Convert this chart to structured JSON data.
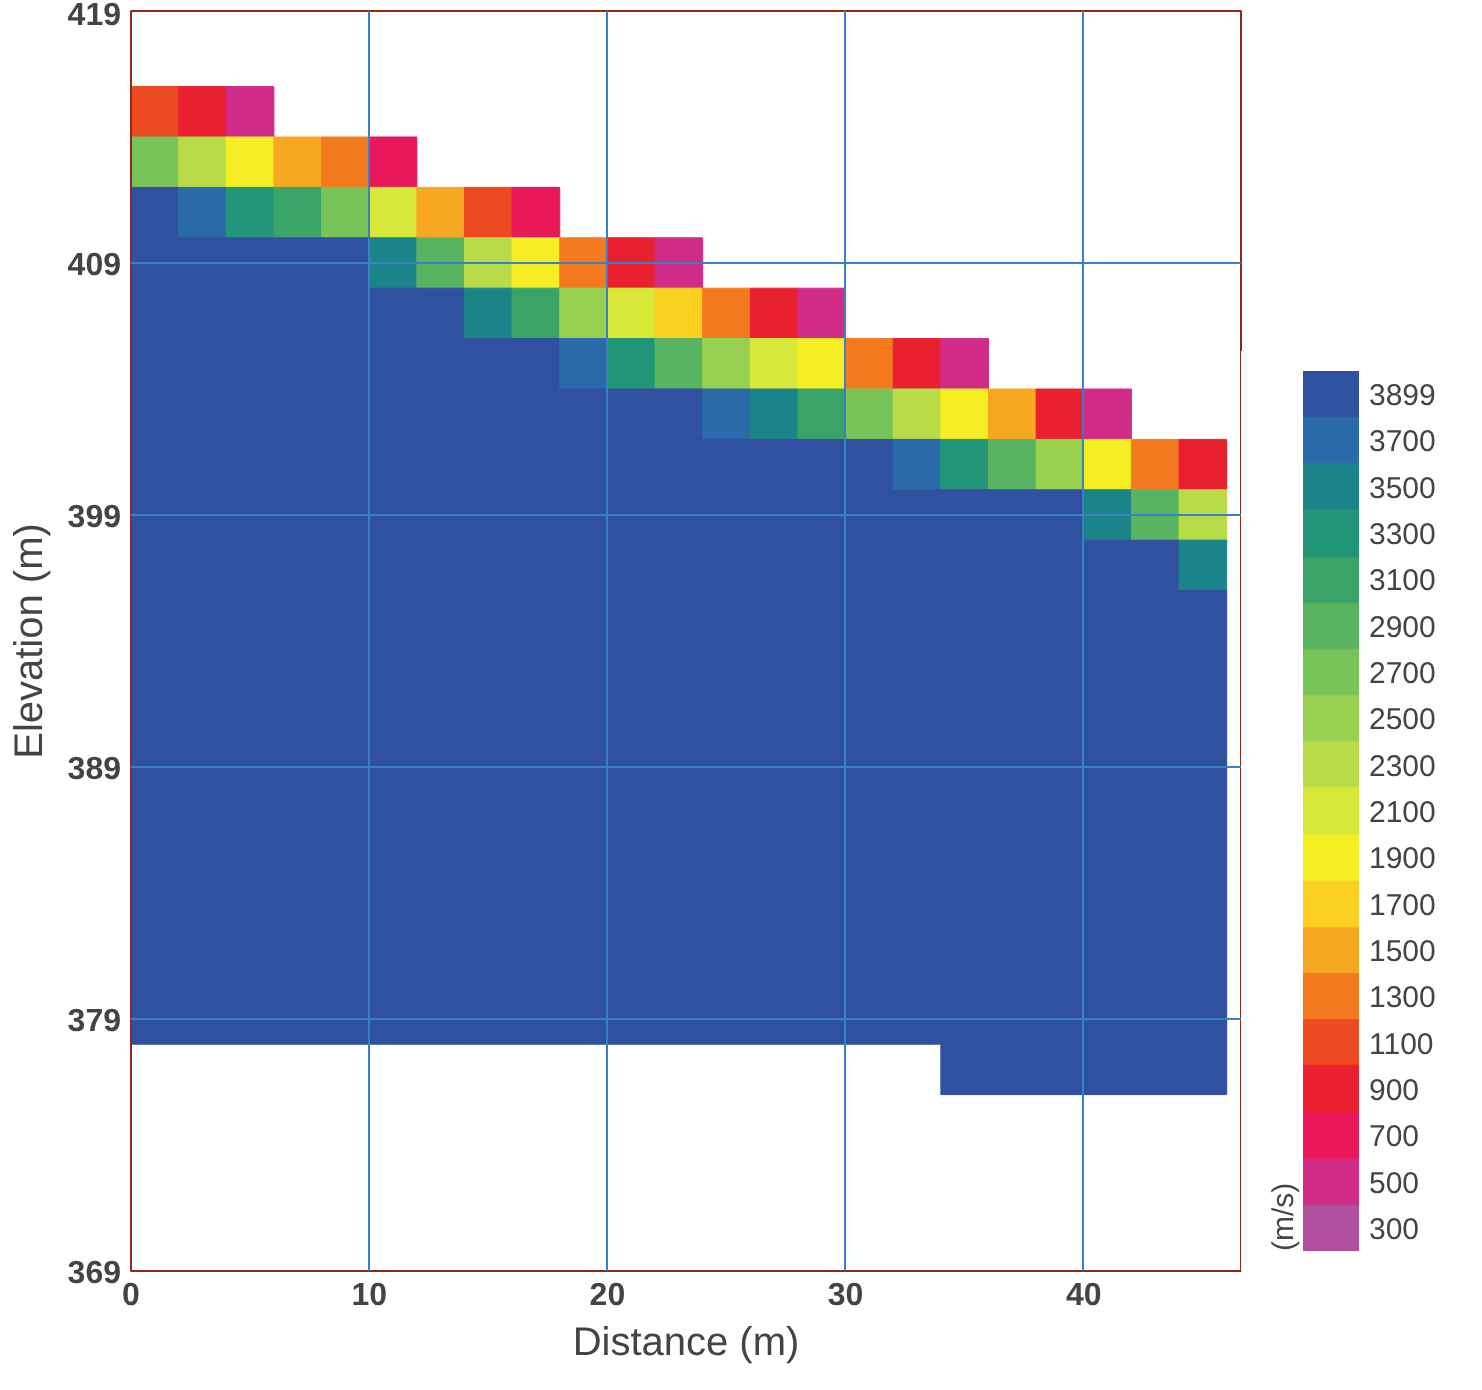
{
  "chart_data": {
    "type": "heatmap",
    "xlabel": "Distance (m)",
    "ylabel": "Elevation (m)",
    "clabel": "(m/s)",
    "x": [
      1,
      3,
      5,
      7,
      9,
      11,
      13,
      15,
      17,
      19,
      21,
      23,
      25,
      27,
      29,
      31,
      33,
      35,
      37,
      39,
      41,
      43,
      45
    ],
    "y": [
      415,
      413,
      411,
      409,
      407,
      405,
      403,
      401,
      399,
      397,
      395,
      393,
      391,
      389,
      387,
      385,
      383,
      381,
      379,
      377
    ],
    "cells": [
      [
        1100,
        900,
        500,
        null,
        null,
        null,
        null,
        null,
        null,
        null,
        null,
        null,
        null,
        null,
        null,
        null,
        null,
        null,
        null,
        null,
        null,
        null,
        null
      ],
      [
        2700,
        2300,
        1900,
        1500,
        1300,
        700,
        null,
        null,
        null,
        null,
        null,
        null,
        null,
        null,
        null,
        null,
        null,
        null,
        null,
        null,
        null,
        null,
        null
      ],
      [
        3899,
        3700,
        3300,
        3100,
        2700,
        2100,
        1500,
        1100,
        700,
        null,
        null,
        null,
        null,
        null,
        null,
        null,
        null,
        null,
        null,
        null,
        null,
        null,
        null
      ],
      [
        3899,
        3899,
        3899,
        3899,
        3899,
        3500,
        2900,
        2300,
        1900,
        1300,
        900,
        500,
        null,
        null,
        null,
        null,
        null,
        null,
        null,
        null,
        null,
        null,
        null
      ],
      [
        3899,
        3899,
        3899,
        3899,
        3899,
        3899,
        3899,
        3500,
        3100,
        2500,
        2100,
        1700,
        1300,
        900,
        500,
        null,
        null,
        null,
        null,
        null,
        null,
        null,
        null
      ],
      [
        3899,
        3899,
        3899,
        3899,
        3899,
        3899,
        3899,
        3899,
        3899,
        3700,
        3300,
        2900,
        2500,
        2100,
        1900,
        1300,
        900,
        500,
        null,
        null,
        null,
        null,
        null
      ],
      [
        3899,
        3899,
        3899,
        3899,
        3899,
        3899,
        3899,
        3899,
        3899,
        3899,
        3899,
        3899,
        3700,
        3500,
        3100,
        2700,
        2300,
        1900,
        1500,
        900,
        500,
        null,
        null
      ],
      [
        3899,
        3899,
        3899,
        3899,
        3899,
        3899,
        3899,
        3899,
        3899,
        3899,
        3899,
        3899,
        3899,
        3899,
        3899,
        3899,
        3700,
        3300,
        2900,
        2500,
        1900,
        1300,
        900
      ],
      [
        3899,
        3899,
        3899,
        3899,
        3899,
        3899,
        3899,
        3899,
        3899,
        3899,
        3899,
        3899,
        3899,
        3899,
        3899,
        3899,
        3899,
        3899,
        3899,
        3899,
        3500,
        2900,
        2300
      ],
      [
        3899,
        3899,
        3899,
        3899,
        3899,
        3899,
        3899,
        3899,
        3899,
        3899,
        3899,
        3899,
        3899,
        3899,
        3899,
        3899,
        3899,
        3899,
        3899,
        3899,
        3899,
        3899,
        3500
      ],
      [
        3899,
        3899,
        3899,
        3899,
        3899,
        3899,
        3899,
        3899,
        3899,
        3899,
        3899,
        3899,
        3899,
        3899,
        3899,
        3899,
        3899,
        3899,
        3899,
        3899,
        3899,
        3899,
        3899
      ],
      [
        3899,
        3899,
        3899,
        3899,
        3899,
        3899,
        3899,
        3899,
        3899,
        3899,
        3899,
        3899,
        3899,
        3899,
        3899,
        3899,
        3899,
        3899,
        3899,
        3899,
        3899,
        3899,
        3899
      ],
      [
        3899,
        3899,
        3899,
        3899,
        3899,
        3899,
        3899,
        3899,
        3899,
        3899,
        3899,
        3899,
        3899,
        3899,
        3899,
        3899,
        3899,
        3899,
        3899,
        3899,
        3899,
        3899,
        3899
      ],
      [
        3899,
        3899,
        3899,
        3899,
        3899,
        3899,
        3899,
        3899,
        3899,
        3899,
        3899,
        3899,
        3899,
        3899,
        3899,
        3899,
        3899,
        3899,
        3899,
        3899,
        3899,
        3899,
        3899
      ],
      [
        3899,
        3899,
        3899,
        3899,
        3899,
        3899,
        3899,
        3899,
        3899,
        3899,
        3899,
        3899,
        3899,
        3899,
        3899,
        3899,
        3899,
        3899,
        3899,
        3899,
        3899,
        3899,
        3899
      ],
      [
        3899,
        3899,
        3899,
        3899,
        3899,
        3899,
        3899,
        3899,
        3899,
        3899,
        3899,
        3899,
        3899,
        3899,
        3899,
        3899,
        3899,
        3899,
        3899,
        3899,
        3899,
        3899,
        3899
      ],
      [
        3899,
        3899,
        3899,
        3899,
        3899,
        3899,
        3899,
        3899,
        3899,
        3899,
        3899,
        3899,
        3899,
        3899,
        3899,
        3899,
        3899,
        3899,
        3899,
        3899,
        3899,
        3899,
        3899
      ],
      [
        3899,
        3899,
        3899,
        3899,
        3899,
        3899,
        3899,
        3899,
        3899,
        3899,
        3899,
        3899,
        3899,
        3899,
        3899,
        3899,
        3899,
        3899,
        3899,
        3899,
        3899,
        3899,
        3899
      ],
      [
        3899,
        3899,
        3899,
        3899,
        3899,
        3899,
        3899,
        3899,
        3899,
        3899,
        3899,
        3899,
        3899,
        3899,
        3899,
        3899,
        3899,
        3899,
        3899,
        3899,
        3899,
        3899,
        3899
      ],
      [
        null,
        null,
        null,
        null,
        null,
        null,
        null,
        null,
        null,
        null,
        null,
        null,
        null,
        null,
        null,
        null,
        null,
        3899,
        3899,
        3899,
        3899,
        3899,
        3899
      ]
    ],
    "colors": [
      "#b0509e",
      "#d02c88",
      "#e8185a",
      "#e82030",
      "#ee4a22",
      "#f47a20",
      "#f8a820",
      "#fad020",
      "#f5ee22",
      "#d8e838",
      "#b8dc48",
      "#98d050",
      "#78c458",
      "#58b460",
      "#3aa468",
      "#229478",
      "#1a8488",
      "#2a6aa8",
      "#3050a0"
    ],
    "clim": [
      200,
      4000
    ],
    "cticks": [
      300,
      500,
      700,
      900,
      1100,
      1300,
      1500,
      1700,
      1900,
      2100,
      2300,
      2500,
      2700,
      2900,
      3100,
      3300,
      3500,
      3700,
      3899
    ],
    "xlim": [
      0,
      46.6
    ],
    "ylim": [
      369,
      419
    ],
    "xticks": [
      0,
      10,
      20,
      30,
      40
    ],
    "yticks": [
      369,
      379,
      389,
      399,
      409,
      419
    ],
    "grid": true
  }
}
